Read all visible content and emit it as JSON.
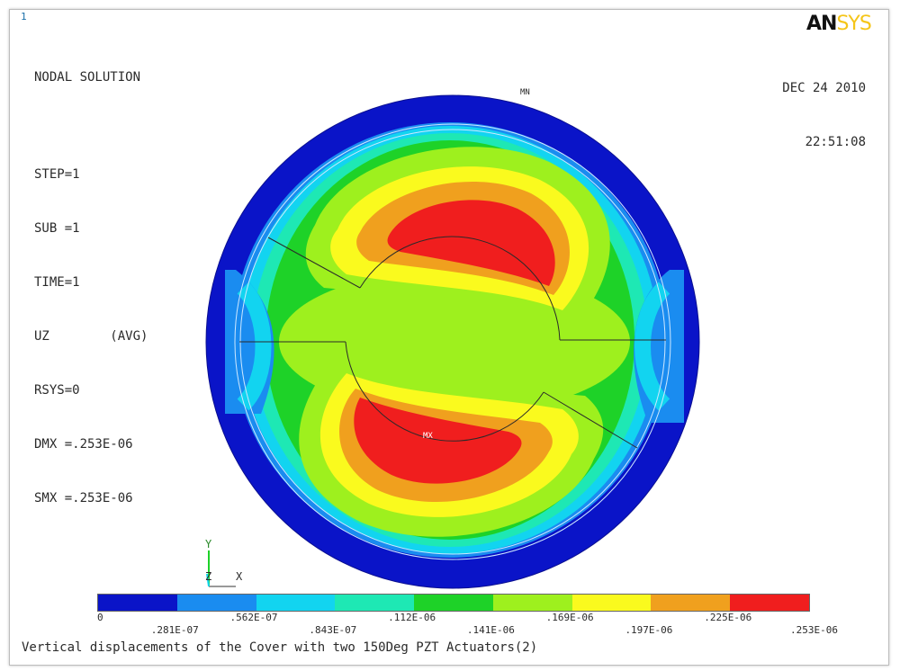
{
  "window": {
    "number": "1"
  },
  "logo": {
    "part1": "AN",
    "part2": "SYS"
  },
  "info_lines": [
    "NODAL SOLUTION",
    "STEP=1",
    "SUB =1",
    "TIME=1",
    "UZ        (AVG)",
    "RSYS=0",
    "DMX =.253E-06",
    "SMX =.253E-06"
  ],
  "date": {
    "day": "DEC 24 2010",
    "time": "22:51:08"
  },
  "markers": {
    "min": "MN",
    "max": "MX"
  },
  "axes": {
    "y": "Y",
    "z": "Z",
    "x": "X"
  },
  "legend": {
    "colors": [
      "#0a14c8",
      "#1a8cf0",
      "#12d4f0",
      "#1ee8b4",
      "#1ed228",
      "#9ef01e",
      "#fafa1e",
      "#f0a01e",
      "#f01e1e"
    ],
    "ticks": [
      "0",
      ".281E-07",
      ".562E-07",
      ".843E-07",
      ".112E-06",
      ".141E-06",
      ".169E-06",
      ".197E-06",
      ".225E-06",
      ".253E-06"
    ]
  },
  "caption": "Vertical displacements of the Cover with two 150Deg PZT Actuators(2)"
}
